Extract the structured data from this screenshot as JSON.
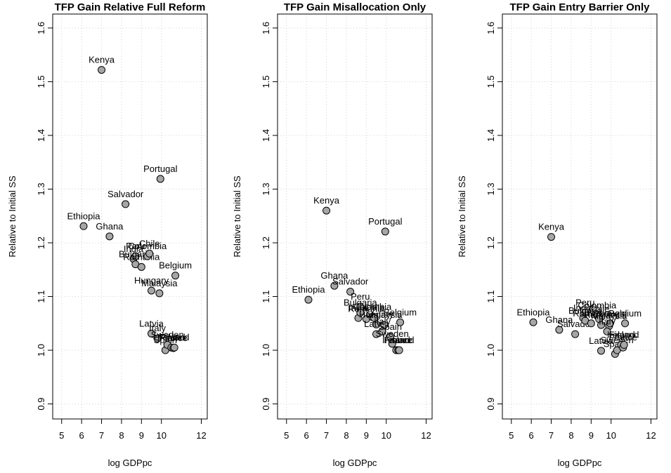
{
  "chart_data": [
    {
      "type": "scatter",
      "title": "TFP Gain Relative Full Reform",
      "xlabel": "log GDPpc",
      "ylabel": "Relative to Initial SS",
      "color": "#a6a6a6",
      "grid": true,
      "labels": [
        "Ethiopia",
        "Kenya",
        "Ghana",
        "Salvador",
        "India",
        "Peru",
        "Bulgaria",
        "Romania",
        "Colombia",
        "Chile",
        "Hungary",
        "Latvia",
        "Malaysia",
        "Portugal",
        "Italy",
        "Spain",
        "Sweden",
        "Ireland",
        "France",
        "Finland",
        "Belgium"
      ],
      "x": [
        6.1,
        7.0,
        7.4,
        8.2,
        8.6,
        8.7,
        8.7,
        9.0,
        9.3,
        9.4,
        9.5,
        9.5,
        9.9,
        9.95,
        9.8,
        10.2,
        10.3,
        10.5,
        10.6,
        10.65,
        10.7
      ],
      "y": [
        1.231,
        1.522,
        1.212,
        1.272,
        1.17,
        1.175,
        1.16,
        1.155,
        1.175,
        1.18,
        1.111,
        1.031,
        1.106,
        1.319,
        1.022,
        1.0,
        1.01,
        1.005,
        1.004,
        1.005,
        1.139
      ],
      "xlim": [
        4.55,
        12.3
      ],
      "xticks": [
        5,
        6,
        7,
        8,
        9,
        10,
        12
      ],
      "ylim": [
        0.872,
        1.626
      ],
      "yticks": [
        0.9,
        {
          "value": 1,
          "label": "1.0"
        },
        1.1,
        1.2,
        1.3,
        1.4,
        1.5,
        1.6
      ]
    },
    {
      "type": "scatter",
      "title": "TFP Gain Misallocation Only",
      "xlabel": "log GDPpc",
      "ylabel": "Relative to Initial SS",
      "color": "#a6a6a6",
      "grid": true,
      "labels": [
        "Ethiopia",
        "Kenya",
        "Ghana",
        "Salvador",
        "India",
        "Peru",
        "Bulgaria",
        "Romania",
        "Colombia",
        "Chile",
        "Hungary",
        "Latvia",
        "Malaysia",
        "Portugal",
        "Italy",
        "Spain",
        "Sweden",
        "Ireland",
        "France",
        "Finland",
        "Belgium"
      ],
      "x": [
        6.1,
        7.0,
        7.4,
        8.2,
        8.6,
        8.7,
        8.7,
        9.0,
        9.3,
        9.4,
        9.5,
        9.5,
        9.9,
        9.95,
        9.8,
        10.2,
        10.3,
        10.5,
        10.6,
        10.65,
        10.7
      ],
      "y": [
        1.094,
        1.26,
        1.12,
        1.109,
        1.06,
        1.081,
        1.07,
        1.058,
        1.062,
        1.06,
        1.048,
        1.03,
        1.047,
        1.221,
        1.035,
        1.025,
        1.012,
        1.0,
        1.0,
        1.0,
        1.052
      ],
      "xlim": [
        4.55,
        12.3
      ],
      "xticks": [
        5,
        6,
        7,
        8,
        9,
        10,
        12
      ],
      "ylim": [
        0.872,
        1.626
      ],
      "yticks": [
        0.9,
        {
          "value": 1,
          "label": "1.0"
        },
        1.1,
        1.2,
        1.3,
        1.4,
        1.5,
        1.6
      ]
    },
    {
      "type": "scatter",
      "title": "TFP Gain Entry Barrier Only",
      "xlabel": "log GDPpc",
      "ylabel": "Relative to Initial SS",
      "color": "#a6a6a6",
      "grid": true,
      "labels": [
        "Ethiopia",
        "Kenya",
        "Ghana",
        "Salvador",
        "India",
        "Peru",
        "Bulgaria",
        "Romania",
        "Colombia",
        "Chile",
        "Hungary",
        "Latvia",
        "Malaysia",
        "Portugal",
        "Italy",
        "Spain",
        "Sweden",
        "Ireland",
        "France",
        "Finland",
        "Belgium"
      ],
      "x": [
        6.1,
        7.0,
        7.4,
        8.2,
        8.6,
        8.7,
        8.7,
        9.0,
        9.3,
        9.4,
        9.5,
        9.5,
        9.9,
        9.95,
        9.8,
        10.2,
        10.3,
        10.5,
        10.6,
        10.65,
        10.7
      ],
      "y": [
        1.052,
        1.211,
        1.038,
        1.03,
        1.06,
        1.07,
        1.055,
        1.05,
        1.065,
        1.058,
        1.047,
        0.999,
        1.045,
        1.05,
        1.035,
        0.993,
        1.0,
        1.01,
        1.005,
        1.01,
        1.05
      ],
      "xlim": [
        4.55,
        12.3
      ],
      "xticks": [
        5,
        6,
        7,
        8,
        9,
        10,
        12
      ],
      "ylim": [
        0.872,
        1.626
      ],
      "yticks": [
        0.9,
        {
          "value": 1,
          "label": "1.0"
        },
        1.1,
        1.2,
        1.3,
        1.4,
        1.5,
        1.6
      ]
    }
  ]
}
